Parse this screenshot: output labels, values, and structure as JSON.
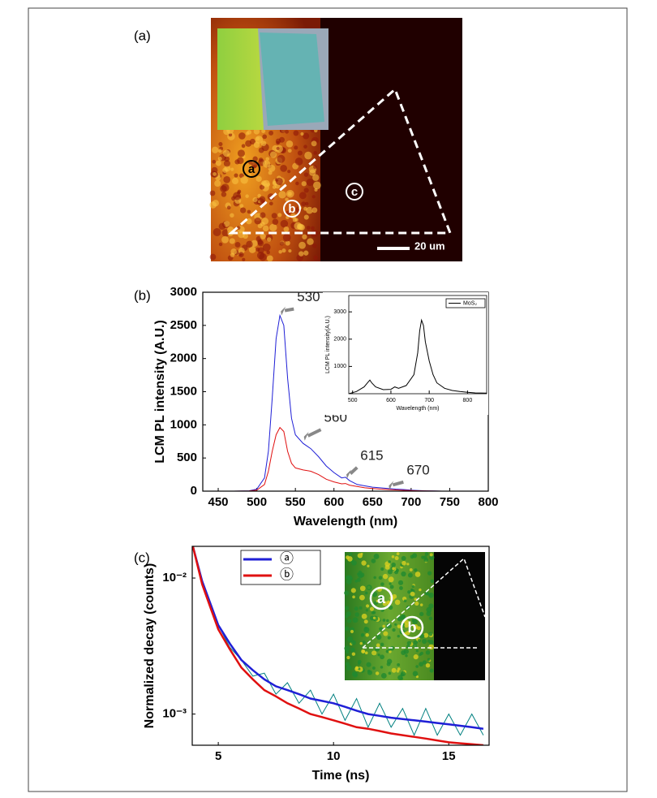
{
  "panel_labels": [
    "(a)",
    "(b)",
    "(c)"
  ],
  "image_a": {
    "labels": [
      "a",
      "b",
      "c"
    ],
    "scale_bar": "20 um"
  },
  "image_c": {
    "labels": [
      "a",
      "b"
    ]
  },
  "chart_data": [
    {
      "type": "line",
      "xlabel": "Wavelength (nm)",
      "ylabel": "LCM PL intensity (A.U.)",
      "xlim": [
        430,
        800
      ],
      "xticks": [
        450,
        500,
        550,
        600,
        650,
        700,
        750,
        800
      ],
      "ylim": [
        0,
        3000
      ],
      "yticks": [
        0,
        500,
        1000,
        1500,
        2000,
        2500,
        3000
      ],
      "annotations": [
        "530",
        "560",
        "615",
        "670"
      ],
      "x": [
        430,
        450,
        470,
        490,
        500,
        510,
        515,
        520,
        525,
        530,
        535,
        540,
        545,
        550,
        560,
        570,
        580,
        590,
        600,
        610,
        615,
        620,
        630,
        640,
        650,
        660,
        670,
        680,
        690,
        700,
        710,
        720,
        730,
        740
      ],
      "series": [
        {
          "color": "#1f1fd6",
          "values": [
            0,
            0,
            0,
            5,
            30,
            200,
            600,
            1400,
            2300,
            2650,
            2500,
            1700,
            1100,
            850,
            720,
            640,
            520,
            380,
            280,
            200,
            210,
            160,
            100,
            80,
            60,
            50,
            40,
            30,
            25,
            15,
            10,
            5,
            2,
            0
          ]
        },
        {
          "color": "#e01010",
          "values": [
            0,
            0,
            0,
            3,
            15,
            100,
            300,
            600,
            850,
            960,
            900,
            600,
            420,
            350,
            320,
            300,
            250,
            180,
            140,
            110,
            115,
            90,
            70,
            50,
            40,
            30,
            25,
            18,
            12,
            8,
            5,
            3,
            1,
            0
          ]
        }
      ]
    },
    {
      "type": "line",
      "xlabel": "Wavelength (nm)",
      "ylabel": "LCM PL intensity(A.U.)",
      "xlim": [
        490,
        850
      ],
      "xticks": [
        500,
        600,
        700,
        800
      ],
      "ylim": [
        0,
        3600
      ],
      "yticks": [
        1000,
        2000,
        3000
      ],
      "x": [
        490,
        510,
        530,
        540,
        545,
        550,
        560,
        580,
        600,
        610,
        620,
        640,
        660,
        670,
        675,
        680,
        685,
        690,
        700,
        710,
        720,
        740,
        760,
        780,
        800,
        820,
        850
      ],
      "series": [
        {
          "name": "MoS₂",
          "color": "#000000",
          "values": [
            0,
            80,
            250,
            420,
            500,
            400,
            250,
            150,
            160,
            250,
            200,
            300,
            700,
            1500,
            2300,
            2700,
            2500,
            1900,
            1200,
            700,
            400,
            200,
            120,
            80,
            50,
            30,
            20
          ]
        }
      ]
    },
    {
      "type": "line",
      "log_y": true,
      "xlabel": "Time (ns)",
      "ylabel": "Normalized decay (counts)",
      "xlim": [
        3.87,
        16.75
      ],
      "xticks": [
        5,
        10,
        15
      ],
      "ylim": [
        0.00059,
        0.0171
      ],
      "yticks": [
        {
          "value": 0.01,
          "label": "10⁻²"
        },
        {
          "value": 0.001,
          "label": "10⁻³"
        }
      ],
      "x": [
        3.9,
        4.3,
        4.7,
        5,
        5.5,
        6,
        6.5,
        7,
        7.5,
        8,
        8.5,
        9,
        9.5,
        10,
        10.5,
        11,
        11.5,
        12,
        12.5,
        13,
        13.5,
        14,
        14.5,
        15,
        15.5,
        16,
        16.5
      ],
      "series": [
        {
          "color": "#008080",
          "values": [
            0.017,
            0.0095,
            0.006,
            0.0045,
            0.0031,
            0.0025,
            0.0019,
            0.002,
            0.0014,
            0.0017,
            0.0012,
            0.0015,
            0.001,
            0.0014,
            0.0009,
            0.0013,
            0.0008,
            0.0012,
            0.0008,
            0.0011,
            0.0007,
            0.0011,
            0.0007,
            0.001,
            0.0007,
            0.001,
            0.0007
          ]
        },
        {
          "name": "ⓐ",
          "color": "#1f1fd6",
          "values": [
            0.017,
            0.0095,
            0.0062,
            0.0045,
            0.0033,
            0.0025,
            0.0021,
            0.0018,
            0.0016,
            0.0015,
            0.0014,
            0.0013,
            0.00125,
            0.0012,
            0.00113,
            0.00106,
            0.001,
            0.00097,
            0.00094,
            0.00092,
            0.0009,
            0.00088,
            0.00086,
            0.00084,
            0.00082,
            0.0008,
            0.00078
          ]
        },
        {
          "name": "ⓑ",
          "color": "#e01010",
          "values": [
            0.017,
            0.009,
            0.0058,
            0.0042,
            0.003,
            0.0022,
            0.0018,
            0.0015,
            0.00135,
            0.0012,
            0.0011,
            0.001,
            0.00095,
            0.0009,
            0.00085,
            0.0008,
            0.00078,
            0.00075,
            0.00072,
            0.0007,
            0.00068,
            0.00066,
            0.00064,
            0.00062,
            0.00061,
            0.0006,
            0.00059
          ]
        }
      ]
    }
  ]
}
